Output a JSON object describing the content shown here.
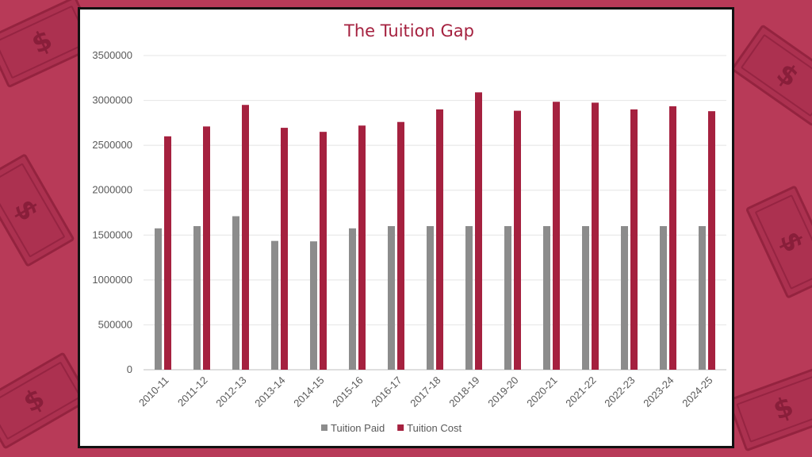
{
  "background": {
    "color": "#b83a58",
    "decoration_icon": "dollar-bill-icon",
    "decoration_glyph": "$"
  },
  "chart_data": {
    "type": "bar",
    "title": "The Tuition Gap",
    "xlabel": "",
    "ylabel": "",
    "categories": [
      "2010-11",
      "2011-12",
      "2012-13",
      "2013-14",
      "2014-15",
      "2015-16",
      "2016-17",
      "2017-18",
      "2018-19",
      "2019-20",
      "2020-21",
      "2021-22",
      "2022-23",
      "2023-24",
      "2024-25"
    ],
    "series": [
      {
        "name": "Tuition Paid",
        "color": "#8c8c8c",
        "values": [
          1575000,
          1600000,
          1710000,
          1435000,
          1430000,
          1575000,
          1600000,
          1600000,
          1600000,
          1600000,
          1600000,
          1600000,
          1600000,
          1600000,
          1600000
        ]
      },
      {
        "name": "Tuition Cost",
        "color": "#a5213f",
        "values": [
          2600000,
          2710000,
          2950000,
          2695000,
          2650000,
          2720000,
          2760000,
          2900000,
          3090000,
          2885000,
          2985000,
          2975000,
          2900000,
          2935000,
          2880000
        ]
      }
    ],
    "ylim": [
      0,
      3500000
    ],
    "yticks": [
      "0",
      "500000",
      "1000000",
      "1500000",
      "2000000",
      "2500000",
      "3000000",
      "3500000"
    ],
    "grid": true,
    "legend_position": "bottom"
  }
}
